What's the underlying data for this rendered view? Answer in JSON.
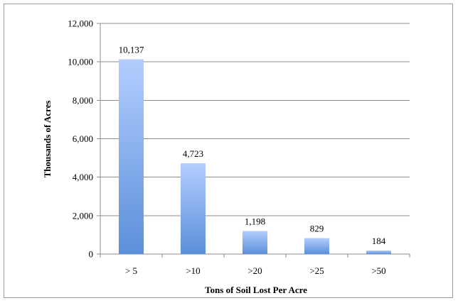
{
  "chart_data": {
    "type": "bar",
    "title": "",
    "categories": [
      "> 5",
      ">10",
      ">20",
      ">25",
      ">50"
    ],
    "values": [
      10137,
      4723,
      1198,
      829,
      184
    ],
    "data_labels": [
      "10,137",
      "4,723",
      "1,198",
      "829",
      "184"
    ],
    "xlabel": "Tons of Soil Lost Per Acre",
    "ylabel": "Thousands of Acres",
    "ylim": [
      0,
      12000
    ],
    "yticks": [
      0,
      2000,
      4000,
      6000,
      8000,
      10000,
      12000
    ],
    "ytick_labels": [
      "0",
      "2,000",
      "4,000",
      "6,000",
      "8,000",
      "10,000",
      "12,000"
    ],
    "grid": true,
    "legend": "none",
    "colors": {
      "bar_top": "#b3ceff",
      "bar_bottom": "#5b8fd9",
      "grid": "#8c8c8c",
      "axis": "#8c8c8c"
    }
  }
}
